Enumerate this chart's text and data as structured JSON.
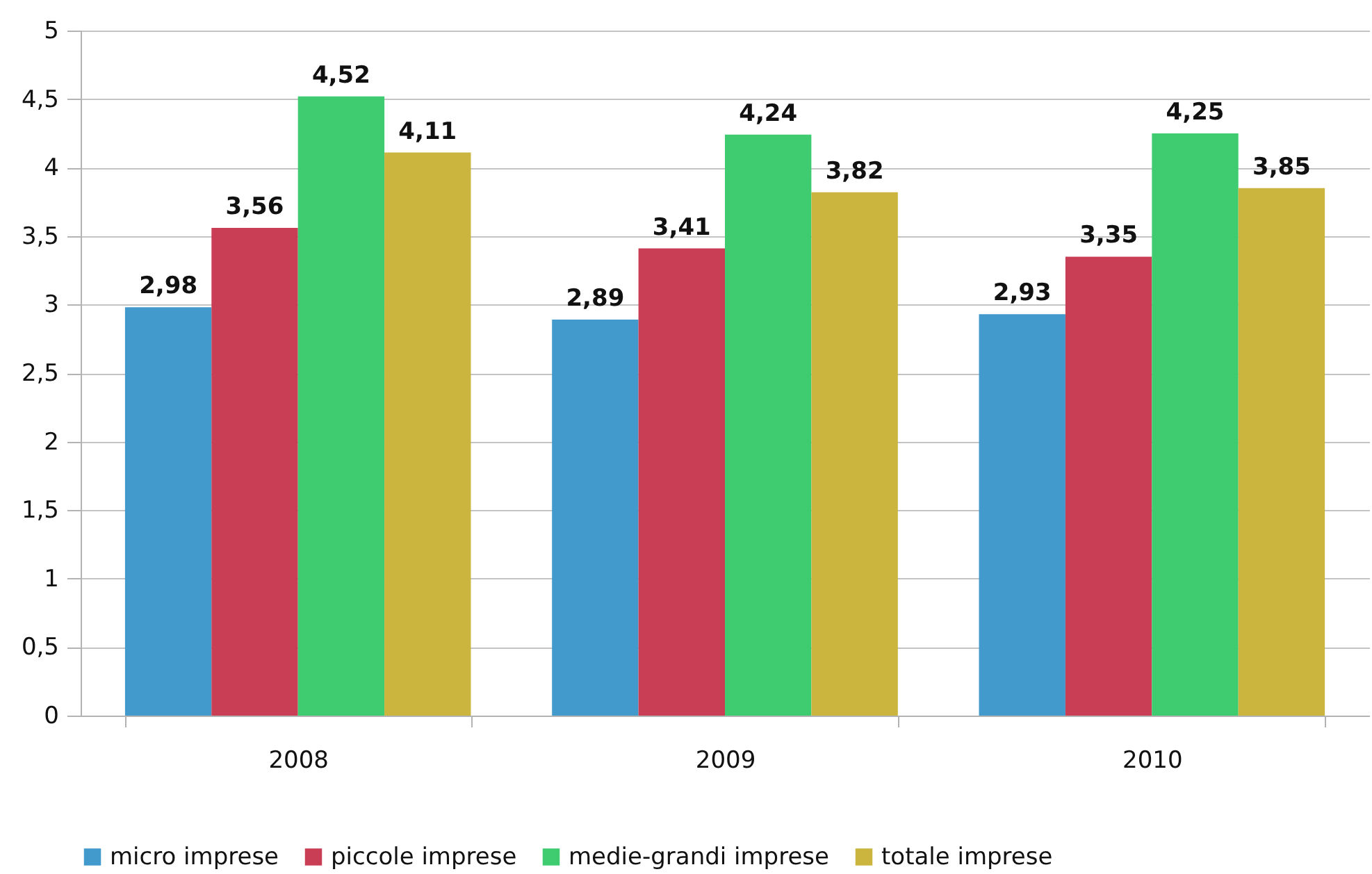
{
  "chart_data": {
    "type": "bar",
    "categories": [
      "2008",
      "2009",
      "2010"
    ],
    "series": [
      {
        "name": "micro imprese",
        "color": "#4199cc",
        "values": [
          2.98,
          2.89,
          2.93
        ],
        "value_labels": [
          "2,98",
          "2,89",
          "2,93"
        ]
      },
      {
        "name": "piccole imprese",
        "color": "#c93e55",
        "values": [
          3.56,
          3.41,
          3.35
        ],
        "value_labels": [
          "3,56",
          "3,41",
          "3,35"
        ]
      },
      {
        "name": "medie-grandi imprese",
        "color": "#3fcc70",
        "values": [
          4.52,
          4.24,
          4.25
        ],
        "value_labels": [
          "4,52",
          "4,24",
          "4,25"
        ]
      },
      {
        "name": "totale imprese",
        "color": "#cbb53e",
        "values": [
          4.11,
          3.82,
          3.85
        ],
        "value_labels": [
          "4,11",
          "3,82",
          "3,85"
        ]
      }
    ],
    "ylim": [
      0,
      5
    ],
    "yticks": [
      0,
      {
        "value": 0.5,
        "label": "0,5"
      },
      1,
      {
        "value": 1.5,
        "label": "1,5"
      },
      2,
      {
        "value": 2.5,
        "label": "2,5"
      },
      3,
      {
        "value": 3.5,
        "label": "3,5"
      },
      4,
      {
        "value": 4.5,
        "label": "4,5"
      },
      5
    ],
    "grid": "y",
    "legend": "bottom"
  }
}
